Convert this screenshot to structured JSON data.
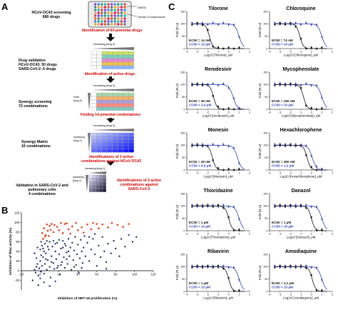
{
  "panels": {
    "a": "A",
    "b": "B",
    "c": "C"
  },
  "panel_a": {
    "top_labels": {
      "dmso": "DMSO",
      "library": "Library of compounds"
    },
    "steps": [
      {
        "left": [
          "HCoV-OC43 screening",
          "680 drugs"
        ],
        "result": "Identification of 60 potential drugs"
      },
      {
        "left": [
          "Drug validation",
          "HCoV-OC43: 50 drugs",
          "SARS-CoV-2: 6 drugs"
        ],
        "result": "Identification of active drugs",
        "matrix_label": "Increasing [drug X]"
      },
      {
        "left": [
          "Synergy screening",
          "72 combinations"
        ],
        "result": "Finding 14 potential combinations",
        "matrix_label": "Increasing [drug X]",
        "side_label": "Fixed [drug X]"
      },
      {
        "left": [
          "Synergy Matrix",
          "16 combinations"
        ],
        "result": [
          "Identifications of 2 active",
          "combinations against HCoV-OC43"
        ],
        "matrix_label": "Increasing [drug X]",
        "side_label": "Increasing [drug Y]"
      },
      {
        "left": [
          "Validation in SARS-CoV-2 and",
          "pulmonary cells",
          "4 combinations"
        ],
        "result": [
          "Identifications of 2 active",
          "combinations against",
          "SARS-CoV-2"
        ],
        "matrix_label": "Increasing [drug X]",
        "side_label": "Increasing [drug Y]"
      }
    ]
  },
  "panel_b": {
    "chart_data": {
      "type": "scatter",
      "xlabel": "Inhibition of HRT-18 proliferation (%)",
      "ylabel": "Inhibition of Rluc activity (%)",
      "xlim": [
        -20,
        120
      ],
      "ylim": [
        -40,
        120
      ],
      "xticks": [
        "-20",
        "0",
        "20",
        "40",
        "60",
        "80",
        "100",
        "120"
      ],
      "yticks": [
        "-20",
        "0",
        "20",
        "40",
        "60",
        "80",
        "100",
        "120"
      ],
      "colors": {
        "inactive": "#1f3a6b",
        "active": "#e0411a"
      },
      "active_points": [
        [
          3,
          66
        ],
        [
          5,
          71
        ],
        [
          6,
          74
        ],
        [
          8,
          83
        ],
        [
          10,
          93
        ],
        [
          12,
          97
        ],
        [
          14,
          80
        ],
        [
          18,
          91
        ],
        [
          22,
          99
        ],
        [
          26,
          97
        ],
        [
          30,
          86
        ],
        [
          34,
          92
        ],
        [
          38,
          99
        ],
        [
          44,
          90
        ],
        [
          50,
          96
        ],
        [
          56,
          99
        ],
        [
          62,
          88
        ],
        [
          66,
          96
        ],
        [
          72,
          90
        ],
        [
          76,
          99
        ],
        [
          82,
          95
        ],
        [
          88,
          91
        ],
        [
          94,
          97
        ],
        [
          2,
          78
        ],
        [
          4,
          88
        ],
        [
          7,
          96
        ],
        [
          9,
          72
        ],
        [
          11,
          85
        ],
        [
          15,
          95
        ],
        [
          20,
          84
        ],
        [
          24,
          78
        ],
        [
          28,
          98
        ],
        [
          32,
          77
        ],
        [
          40,
          84
        ],
        [
          46,
          79
        ],
        [
          54,
          86
        ],
        [
          60,
          97
        ]
      ],
      "inactive_points": [
        [
          -6,
          2
        ],
        [
          -5,
          -4
        ],
        [
          -4,
          8
        ],
        [
          -3,
          14
        ],
        [
          -2,
          -10
        ],
        [
          -1,
          5
        ],
        [
          0,
          20
        ],
        [
          1,
          -2
        ],
        [
          2,
          10
        ],
        [
          3,
          28
        ],
        [
          4,
          -6
        ],
        [
          5,
          14
        ],
        [
          6,
          36
        ],
        [
          7,
          2
        ],
        [
          8,
          22
        ],
        [
          9,
          44
        ],
        [
          10,
          8
        ],
        [
          11,
          -14
        ],
        [
          12,
          30
        ],
        [
          13,
          50
        ],
        [
          14,
          16
        ],
        [
          15,
          4
        ],
        [
          16,
          40
        ],
        [
          17,
          24
        ],
        [
          18,
          58
        ],
        [
          19,
          10
        ],
        [
          20,
          34
        ],
        [
          21,
          -8
        ],
        [
          22,
          46
        ],
        [
          23,
          18
        ],
        [
          24,
          62
        ],
        [
          25,
          28
        ],
        [
          26,
          6
        ],
        [
          27,
          52
        ],
        [
          28,
          38
        ],
        [
          29,
          14
        ],
        [
          30,
          66
        ],
        [
          31,
          30
        ],
        [
          32,
          48
        ],
        [
          33,
          2
        ],
        [
          34,
          58
        ],
        [
          35,
          22
        ],
        [
          36,
          42
        ],
        [
          37,
          70
        ],
        [
          38,
          12
        ],
        [
          39,
          34
        ],
        [
          40,
          54
        ],
        [
          41,
          -4
        ],
        [
          42,
          26
        ],
        [
          43,
          64
        ],
        [
          44,
          40
        ],
        [
          45,
          16
        ],
        [
          46,
          48
        ],
        [
          47,
          72
        ],
        [
          48,
          30
        ],
        [
          50,
          58
        ],
        [
          52,
          20
        ],
        [
          54,
          44
        ],
        [
          56,
          66
        ],
        [
          58,
          34
        ],
        [
          60,
          10
        ],
        [
          62,
          52
        ],
        [
          64,
          28
        ],
        [
          66,
          70
        ],
        [
          68,
          40
        ],
        [
          70,
          18
        ],
        [
          72,
          56
        ],
        [
          75,
          36
        ],
        [
          78,
          62
        ],
        [
          80,
          46
        ],
        [
          84,
          30
        ],
        [
          86,
          66
        ],
        [
          90,
          50
        ],
        [
          94,
          74
        ],
        [
          98,
          60
        ],
        [
          102,
          70
        ],
        [
          -8,
          -20
        ],
        [
          -2,
          -30
        ],
        [
          4,
          -24
        ],
        [
          10,
          -32
        ],
        [
          16,
          -22
        ],
        [
          1,
          32
        ],
        [
          3,
          46
        ],
        [
          5,
          56
        ],
        [
          7,
          62
        ],
        [
          0,
          44
        ],
        [
          2,
          52
        ],
        [
          4,
          40
        ],
        [
          6,
          24
        ],
        [
          8,
          50
        ],
        [
          10,
          60
        ],
        [
          12,
          18
        ],
        [
          14,
          62
        ],
        [
          16,
          56
        ],
        [
          18,
          6
        ],
        [
          20,
          64
        ],
        [
          22,
          12
        ],
        [
          24,
          48
        ],
        [
          26,
          56
        ],
        [
          28,
          24
        ],
        [
          30,
          40
        ],
        [
          -4,
          26
        ],
        [
          -6,
          36
        ],
        [
          -3,
          48
        ],
        [
          0,
          -16
        ],
        [
          1,
          60
        ],
        [
          36,
          8
        ],
        [
          44,
          6
        ],
        [
          52,
          70
        ],
        [
          58,
          76
        ],
        [
          70,
          4
        ]
      ]
    }
  },
  "panel_c": {
    "x_ticks": [
      "-4",
      "-3",
      "-2",
      "-1",
      "0",
      "1",
      "2"
    ],
    "y_ticks": [
      "0",
      "50",
      "100",
      "150"
    ],
    "y_label": "Fold (R.U)",
    "colors": {
      "viral": "#111111",
      "cell": "#2b3fb8"
    },
    "charts": [
      {
        "title": "Tilorone",
        "ec50": "14 nM",
        "cc50": "10 μM",
        "xlabel": "Log10 [Tilorone], μM",
        "viral_ic50": -1.85,
        "cell_ic50": 1.0
      },
      {
        "title": "Chloroquine",
        "ec50": "74 nM",
        "cc50": "10 μM",
        "xlabel": "Log10 [Chloroquine], μM",
        "viral_ic50": -1.1,
        "cell_ic50": 1.0
      },
      {
        "title": "Remdesivir",
        "ec50": "36 nM",
        "cc50": "2.6 μM",
        "xlabel": "Log10 [remdesivir], μM",
        "viral_ic50": -1.45,
        "cell_ic50": 0.42
      },
      {
        "title": "Mycophenolate",
        "ec50": "180 nM",
        "cc50": "10 μM",
        "xlabel": "Log10 [Mycophenolate], μM",
        "viral_ic50": -0.75,
        "cell_ic50": 1.0
      },
      {
        "title": "Monesin",
        "ec50": "29 nM",
        "cc50": "6.9 μM",
        "xlabel": "Log10 [Monesin], μM",
        "viral_ic50": -1.55,
        "cell_ic50": 0.84
      },
      {
        "title": "Hexachlorophene",
        "ec50": "390 nM",
        "cc50": "1.2 μM",
        "xlabel": "Log10 [Hexachlorophene], μM",
        "viral_ic50": -0.41,
        "cell_ic50": 0.08
      },
      {
        "title": "Thioridazine",
        "ec50": "1 μM",
        "cc50": "10 μM",
        "xlabel": "Log10 [Thioridazine], μM",
        "viral_ic50": 0.0,
        "cell_ic50": 1.0
      },
      {
        "title": "Danazol",
        "ec50": "1 μM",
        "cc50": "10 μM",
        "xlabel": "Log10 [Danazol], μM",
        "viral_ic50": 0.0,
        "cell_ic50": 1.0
      },
      {
        "title": "Ribavirin",
        "ec50": "1 μM",
        "cc50": "10 μM",
        "xlabel": "Log10 [Ribavirin], μM",
        "viral_ic50": 0.0,
        "cell_ic50": 1.0
      },
      {
        "title": "Amodiaquine",
        "ec50": "1.2 μM",
        "cc50": "10 μM",
        "xlabel": "Log10 [Amodiaquine], μM",
        "viral_ic50": 0.08,
        "cell_ic50": 1.0
      }
    ]
  }
}
